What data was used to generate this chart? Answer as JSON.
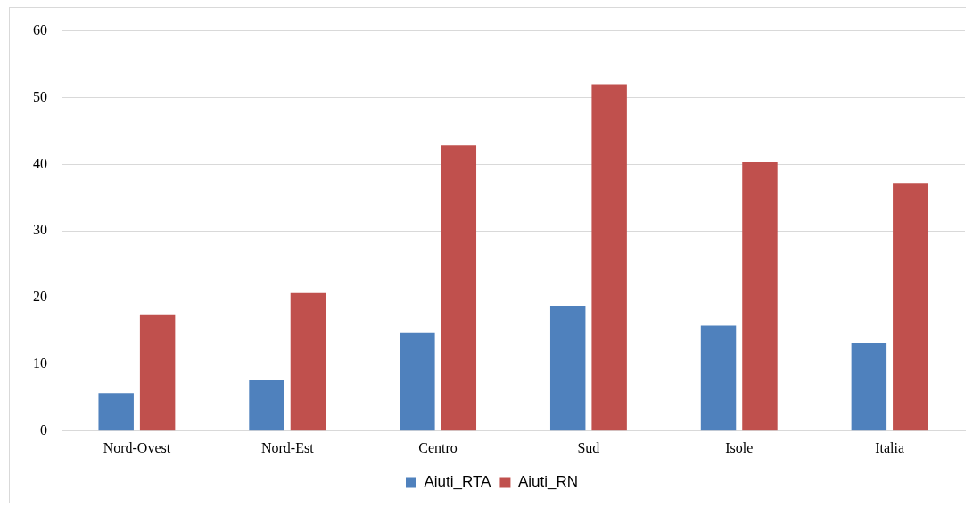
{
  "chart_data": {
    "type": "bar",
    "categories": [
      "Nord-Ovest",
      "Nord-Est",
      "Centro",
      "Sud",
      "Isole",
      "Italia"
    ],
    "series": [
      {
        "name": "Aiuti_RTA",
        "color": "#4f81bd",
        "values": [
          5.7,
          7.6,
          14.7,
          18.8,
          15.8,
          13.2
        ]
      },
      {
        "name": "Aiuti_RN",
        "color": "#c0504d",
        "values": [
          17.5,
          20.7,
          42.8,
          52.0,
          40.3,
          37.2
        ]
      }
    ],
    "ylim": [
      0,
      60
    ],
    "yticks": [
      0,
      10,
      20,
      30,
      40,
      50,
      60
    ],
    "grid": "y",
    "legend": "bottom"
  }
}
